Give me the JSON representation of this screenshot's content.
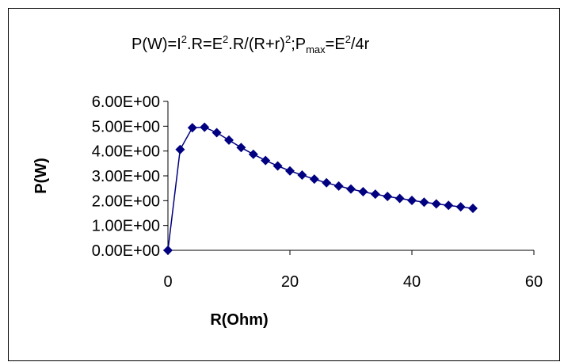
{
  "chart_data": {
    "type": "scatter",
    "title": {
      "p_label": "P(W)=I",
      "exp2": "2",
      "r_mid": ".R=E",
      "r_div": ".R/(R+r)",
      "sep": ";P",
      "max_sub": "max",
      "tail_eq": "=E",
      "tail_end": "/4r"
    },
    "xlabel": "R(Ohm)",
    "ylabel": "P(W)",
    "xlim": [
      0,
      60
    ],
    "ylim": [
      0,
      6
    ],
    "x_ticks": [
      0,
      20,
      40,
      60
    ],
    "x_tick_labels": [
      "0",
      "20",
      "40",
      "60"
    ],
    "y_ticks": [
      0,
      1,
      2,
      3,
      4,
      5,
      6
    ],
    "y_tick_labels": [
      "0.00E+00",
      "1.00E+00",
      "2.00E+00",
      "3.00E+00",
      "4.00E+00",
      "5.00E+00",
      "6.00E+00"
    ],
    "grid": false,
    "legend": "none",
    "marker": "diamond",
    "line": true,
    "series": [
      {
        "color": "#000080",
        "x": [
          0,
          2,
          4,
          6,
          8,
          10,
          12,
          14,
          16,
          18,
          20,
          22,
          24,
          26,
          28,
          30,
          32,
          34,
          36,
          38,
          40,
          42,
          44,
          46,
          48,
          50
        ],
        "y": [
          0,
          4.06,
          4.94,
          4.96,
          4.74,
          4.44,
          4.14,
          3.87,
          3.62,
          3.4,
          3.2,
          3.03,
          2.87,
          2.72,
          2.59,
          2.47,
          2.36,
          2.26,
          2.17,
          2.09,
          2.01,
          1.94,
          1.87,
          1.81,
          1.75,
          1.69
        ]
      }
    ]
  }
}
